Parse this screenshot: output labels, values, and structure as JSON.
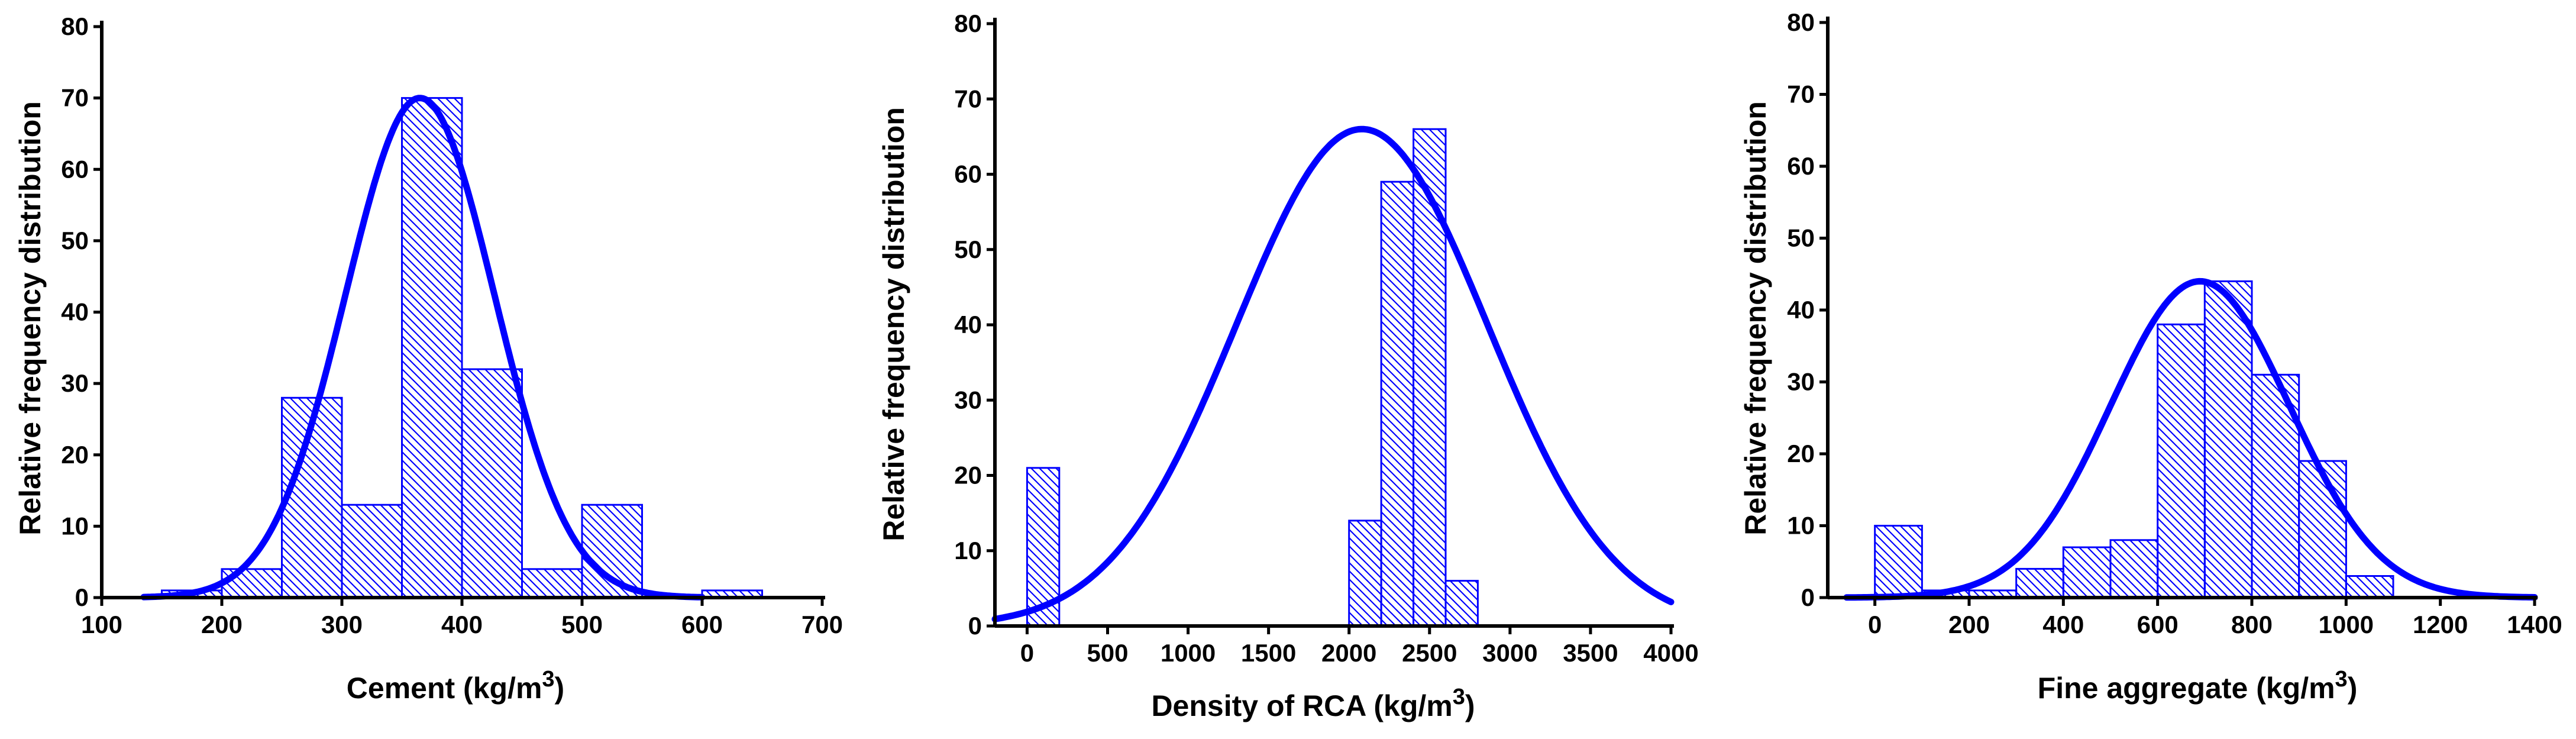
{
  "colors": {
    "bar": "#0000ff",
    "curve": "#0000ff",
    "axis": "#000000",
    "background": "#ffffff"
  },
  "chart_data": [
    {
      "type": "bar",
      "subtype": "histogram-with-normal-fit",
      "xlabel": "Cement (kg/m",
      "xlabel_sup": "3",
      "xlabel_suffix": ")",
      "ylabel": "Relative frequency distribution",
      "xlim": [
        100,
        700
      ],
      "ylim": [
        0,
        80
      ],
      "xticks": [
        100,
        200,
        300,
        400,
        500,
        600,
        700
      ],
      "yticks": [
        0,
        10,
        20,
        30,
        40,
        50,
        60,
        70,
        80
      ],
      "bins": [
        {
          "start": 150,
          "end": 200,
          "value": 1
        },
        {
          "start": 200,
          "end": 250,
          "value": 4
        },
        {
          "start": 250,
          "end": 300,
          "value": 28
        },
        {
          "start": 300,
          "end": 350,
          "value": 13
        },
        {
          "start": 350,
          "end": 400,
          "value": 70
        },
        {
          "start": 400,
          "end": 450,
          "value": 32
        },
        {
          "start": 450,
          "end": 500,
          "value": 4
        },
        {
          "start": 500,
          "end": 550,
          "value": 13
        },
        {
          "start": 600,
          "end": 650,
          "value": 1
        }
      ],
      "fit": {
        "peak": 70,
        "mean": 365,
        "sigma": 62,
        "xmin": 135,
        "xmax": 600
      }
    },
    {
      "type": "bar",
      "subtype": "histogram-with-normal-fit",
      "xlabel": "Density of RCA (kg/m",
      "xlabel_sup": "3",
      "xlabel_suffix": ")",
      "ylabel": "Relative frequency distribution",
      "xlim": [
        -200,
        4000
      ],
      "ylim": [
        0,
        80
      ],
      "xticks": [
        0,
        500,
        1000,
        1500,
        2000,
        2500,
        3000,
        3500,
        4000
      ],
      "yticks": [
        0,
        10,
        20,
        30,
        40,
        50,
        60,
        70,
        80
      ],
      "bins": [
        {
          "start": 0,
          "end": 200,
          "value": 21
        },
        {
          "start": 2000,
          "end": 2200,
          "value": 14
        },
        {
          "start": 2200,
          "end": 2400,
          "value": 59
        },
        {
          "start": 2400,
          "end": 2600,
          "value": 66
        },
        {
          "start": 2600,
          "end": 2800,
          "value": 6
        }
      ],
      "fit": {
        "peak": 66,
        "mean": 2080,
        "sigma": 780,
        "xmin": -200,
        "xmax": 4000
      }
    },
    {
      "type": "bar",
      "subtype": "histogram-with-normal-fit",
      "xlabel": "Fine aggregate (kg/m",
      "xlabel_sup": "3",
      "xlabel_suffix": ")",
      "ylabel": "Relative frequency distribution",
      "xlim": [
        -100,
        1400
      ],
      "ylim": [
        0,
        80
      ],
      "xticks": [
        0,
        200,
        400,
        600,
        800,
        1000,
        1200,
        1400
      ],
      "yticks": [
        0,
        10,
        20,
        30,
        40,
        50,
        60,
        70,
        80
      ],
      "bins": [
        {
          "start": 0,
          "end": 100,
          "value": 10
        },
        {
          "start": 100,
          "end": 200,
          "value": 1
        },
        {
          "start": 200,
          "end": 300,
          "value": 1
        },
        {
          "start": 300,
          "end": 400,
          "value": 4
        },
        {
          "start": 400,
          "end": 500,
          "value": 7
        },
        {
          "start": 500,
          "end": 600,
          "value": 8
        },
        {
          "start": 600,
          "end": 700,
          "value": 38
        },
        {
          "start": 700,
          "end": 800,
          "value": 44
        },
        {
          "start": 800,
          "end": 900,
          "value": 31
        },
        {
          "start": 900,
          "end": 1000,
          "value": 19
        },
        {
          "start": 1000,
          "end": 1100,
          "value": 3
        }
      ],
      "fit": {
        "peak": 44,
        "mean": 690,
        "sigma": 190,
        "xmin": -60,
        "xmax": 1400
      }
    }
  ]
}
